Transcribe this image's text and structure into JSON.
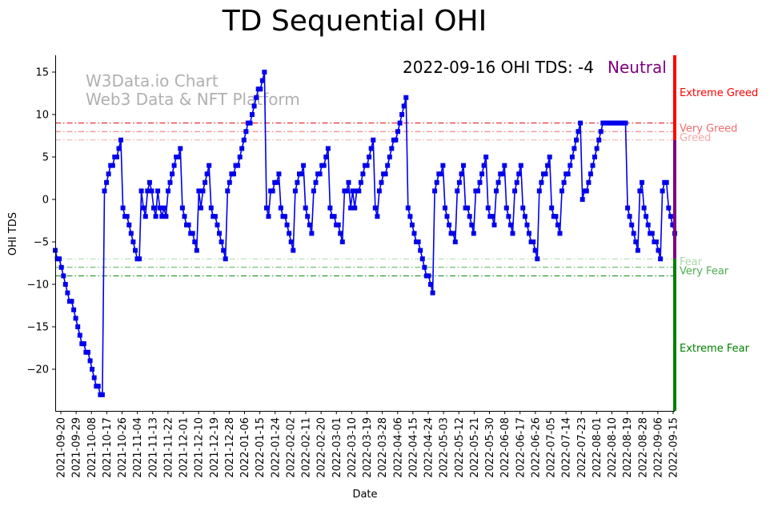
{
  "chart_data": {
    "type": "line",
    "title": "TD Sequential OHI",
    "xlabel": "Date",
    "ylabel": "OHI TDS",
    "ylim": [
      -25,
      17
    ],
    "yticks": [
      15,
      10,
      5,
      0,
      -5,
      -10,
      -15,
      -20
    ],
    "xticks": [
      "2021-09-20",
      "2021-09-29",
      "2021-10-08",
      "2021-10-17",
      "2021-10-26",
      "2021-11-04",
      "2021-11-13",
      "2021-11-22",
      "2021-12-01",
      "2021-12-10",
      "2021-12-19",
      "2021-12-28",
      "2022-01-06",
      "2022-01-15",
      "2022-01-24",
      "2022-02-02",
      "2022-02-11",
      "2022-02-20",
      "2022-03-01",
      "2022-03-10",
      "2022-03-19",
      "2022-03-28",
      "2022-04-06",
      "2022-04-15",
      "2022-04-24",
      "2022-05-03",
      "2022-05-12",
      "2022-05-21",
      "2022-05-30",
      "2022-06-08",
      "2022-06-17",
      "2022-06-26",
      "2022-07-05",
      "2022-07-14",
      "2022-07-23",
      "2022-08-01",
      "2022-08-10",
      "2022-08-19",
      "2022-08-28",
      "2022-09-06",
      "2022-09-15"
    ],
    "watermark": [
      "W3Data.io Chart",
      "Web3 Data & NFT Platform"
    ],
    "annotation": "2022-09-16 OHI TDS: -4",
    "annotation_state": "Neutral",
    "colors": {
      "line": "#0000ee",
      "neutral": "#800080",
      "greed": "#ff0000",
      "fear": "#008000"
    },
    "thresholds": [
      {
        "name": "Extreme Greed",
        "value": 9,
        "color": "#e8000b"
      },
      {
        "name": "Very Greed",
        "value": 8,
        "color": "#f06c6c"
      },
      {
        "name": "Greed",
        "value": 7,
        "color": "#f4a8a8"
      },
      {
        "name": "Fear",
        "value": -7,
        "color": "#a8d8a8"
      },
      {
        "name": "Very Fear",
        "value": -8,
        "color": "#4caf50"
      },
      {
        "name": "Extreme Fear",
        "value": -9,
        "color": "#008000"
      }
    ],
    "side_labels": [
      {
        "text": "Extreme Greed",
        "y": 12.6,
        "color": "#ff0000"
      },
      {
        "text": "Very Greed",
        "y": 8.4,
        "color": "#f06c6c"
      },
      {
        "text": "Greed",
        "y": 7.3,
        "color": "#f4a8a8"
      },
      {
        "text": "Fear",
        "y": -7.3,
        "color": "#a8d8a8"
      },
      {
        "text": "Very Fear",
        "y": -8.4,
        "color": "#4caf50"
      },
      {
        "text": "Extreme Fear",
        "y": -17.5,
        "color": "#008000"
      }
    ],
    "side_bar": [
      {
        "from": 7,
        "to": 17,
        "color": "#ff0000"
      },
      {
        "from": -7,
        "to": 7,
        "color": "#800080"
      },
      {
        "from": -25,
        "to": -7,
        "color": "#008000"
      }
    ],
    "series": [
      {
        "values": [
          -6,
          -7,
          -7,
          -8,
          -9,
          -10,
          -11,
          -12,
          -12,
          -13,
          -14,
          -15,
          -16,
          -17,
          -17,
          -18,
          -18,
          -19,
          -20,
          -21,
          -22,
          -22,
          -23,
          -23,
          1,
          2,
          3,
          4,
          4,
          5,
          5,
          6,
          7,
          -1,
          -2,
          -2,
          -3,
          -4,
          -5,
          -6,
          -7,
          -7,
          1,
          -1,
          -2,
          1,
          2,
          1,
          -1,
          -2,
          1,
          -1,
          -2,
          -1,
          -2,
          1,
          2,
          3,
          4,
          5,
          5,
          6,
          -1,
          -2,
          -3,
          -3,
          -4,
          -4,
          -5,
          -6,
          1,
          -1,
          1,
          2,
          3,
          4,
          -1,
          -2,
          -2,
          -3,
          -4,
          -5,
          -6,
          -7,
          1,
          2,
          3,
          3,
          4,
          4,
          5,
          6,
          7,
          8,
          9,
          9,
          10,
          11,
          12,
          13,
          13,
          14,
          15,
          -1,
          -2,
          1,
          1,
          2,
          2,
          3,
          -1,
          -2,
          -2,
          -3,
          -4,
          -5,
          -6,
          1,
          2,
          3,
          3,
          4,
          -1,
          -2,
          -3,
          -4,
          1,
          2,
          3,
          3,
          4,
          4,
          5,
          6,
          -1,
          -2,
          -2,
          -3,
          -3,
          -4,
          -5,
          1,
          1,
          2,
          -1,
          1,
          -1,
          1,
          1,
          2,
          3,
          4,
          4,
          5,
          6,
          7,
          -1,
          -2,
          1,
          2,
          3,
          3,
          4,
          5,
          6,
          7,
          7,
          8,
          9,
          10,
          11,
          12,
          -1,
          -2,
          -3,
          -4,
          -5,
          -5,
          -6,
          -7,
          -8,
          -9,
          -9,
          -10,
          -11,
          1,
          2,
          3,
          3,
          4,
          -1,
          -2,
          -3,
          -4,
          -4,
          -5,
          1,
          2,
          3,
          4,
          -1,
          -1,
          -2,
          -3,
          -4,
          1,
          1,
          2,
          3,
          4,
          5,
          -1,
          -2,
          -2,
          -3,
          1,
          2,
          3,
          3,
          4,
          -1,
          -2,
          -3,
          -4,
          1,
          2,
          3,
          4,
          -1,
          -2,
          -3,
          -4,
          -5,
          -5,
          -6,
          -7,
          1,
          2,
          3,
          3,
          4,
          5,
          -1,
          -2,
          -2,
          -3,
          -4,
          1,
          2,
          3,
          3,
          4,
          5,
          6,
          7,
          8,
          9,
          0,
          1,
          1,
          2,
          3,
          4,
          5,
          6,
          7,
          8,
          9,
          9,
          9,
          9,
          9,
          9,
          9,
          9,
          9,
          9,
          9,
          9,
          -1,
          -2,
          -3,
          -4,
          -5,
          -6,
          1,
          2,
          -1,
          -2,
          -3,
          -4,
          -4,
          -5,
          -5,
          -6,
          -7,
          1,
          2,
          2,
          -1,
          -2,
          -3,
          -4
        ]
      }
    ]
  }
}
